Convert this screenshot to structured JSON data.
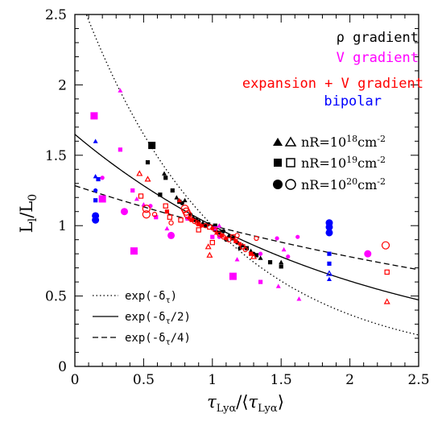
{
  "chart_data": {
    "type": "scatter",
    "xlabel": "τLyα/⟨τLyα⟩",
    "xlabel_parts": {
      "tau": "τ",
      "sub": "Lyα",
      "slash": "/",
      "open": "⟨",
      "close": "⟩"
    },
    "ylabel": "Ll/L0",
    "ylabel_parts": {
      "L": "L",
      "sub_l": "l",
      "slash": "/",
      "sub_0": "0"
    },
    "xlim": [
      0,
      2.5
    ],
    "ylim": [
      0,
      2.5
    ],
    "x_ticks": [
      {
        "value": 0,
        "label": "0"
      },
      {
        "value": 0.5,
        "label": "0.5"
      },
      {
        "value": 1,
        "label": "1"
      },
      {
        "value": 1.5,
        "label": "1.5"
      },
      {
        "value": 2,
        "label": "2"
      },
      {
        "value": 2.5,
        "label": "2.5"
      }
    ],
    "y_ticks": [
      {
        "value": 0,
        "label": "0"
      },
      {
        "value": 0.5,
        "label": "0.5"
      },
      {
        "value": 1,
        "label": "1"
      },
      {
        "value": 1.5,
        "label": "1.5"
      },
      {
        "value": 2,
        "label": "2"
      },
      {
        "value": 2.5,
        "label": "2.5"
      }
    ],
    "color_legend": [
      {
        "label": "ρ gradient",
        "color": "#000000"
      },
      {
        "label": "V gradient",
        "color": "#ff00ff"
      },
      {
        "label": "expansion + V gradient",
        "color": "#ff0000"
      },
      {
        "label": "bipolar",
        "color": "#0000ff"
      }
    ],
    "marker_legend": [
      {
        "shape": "triangle",
        "base": "nR=10",
        "exp": "18",
        "unit": "cm",
        "unit_exp": "-2"
      },
      {
        "shape": "square",
        "base": "nR=10",
        "exp": "19",
        "unit": "cm",
        "unit_exp": "-2"
      },
      {
        "shape": "circle",
        "base": "nR=10",
        "exp": "20",
        "unit": "cm",
        "unit_exp": "-2"
      }
    ],
    "curves": [
      {
        "label_base": "exp(-δ",
        "label_sub": "τ",
        "label_end": ")",
        "divisor": 1,
        "dash": "dotted"
      },
      {
        "label_base": "exp(-δ",
        "label_sub": "τ",
        "label_end": "/2)",
        "divisor": 2,
        "dash": "solid"
      },
      {
        "label_base": "exp(-δ",
        "label_sub": "τ",
        "label_end": "/4)",
        "divisor": 4,
        "dash": "dashed"
      }
    ],
    "series": [
      {
        "color": "#000000",
        "points": [
          [
            0.56,
            1.57,
            "square",
            true,
            "l"
          ],
          [
            0.53,
            1.45,
            "square",
            true,
            "s"
          ],
          [
            0.65,
            1.37,
            "triangle",
            true,
            "s"
          ],
          [
            0.66,
            1.34,
            "square",
            true,
            "s"
          ],
          [
            0.71,
            1.25,
            "square",
            true,
            "s"
          ],
          [
            0.74,
            1.2,
            "triangle",
            true,
            "s"
          ],
          [
            0.76,
            1.17,
            "square",
            true,
            "s"
          ],
          [
            0.78,
            1.16,
            "circle",
            true,
            "s"
          ],
          [
            0.8,
            1.18,
            "triangle",
            true,
            "s"
          ],
          [
            0.84,
            1.08,
            "circle",
            true,
            "s"
          ],
          [
            0.86,
            1.06,
            "triangle",
            true,
            "s"
          ],
          [
            0.88,
            1.04,
            "square",
            true,
            "s"
          ],
          [
            0.9,
            1.03,
            "circle",
            true,
            "s"
          ],
          [
            0.93,
            1.02,
            "triangle",
            true,
            "s"
          ],
          [
            0.95,
            1.0,
            "square",
            true,
            "s"
          ],
          [
            0.97,
            1.01,
            "circle",
            true,
            "s"
          ],
          [
            1.02,
            0.97,
            "triangle",
            true,
            "s"
          ],
          [
            1.05,
            0.95,
            "square",
            true,
            "s"
          ],
          [
            1.08,
            0.96,
            "circle",
            true,
            "s"
          ],
          [
            1.12,
            0.93,
            "triangle",
            true,
            "s"
          ],
          [
            1.15,
            0.91,
            "square",
            true,
            "s"
          ],
          [
            1.18,
            0.88,
            "circle",
            true,
            "s"
          ],
          [
            1.22,
            0.86,
            "triangle",
            true,
            "s"
          ],
          [
            1.25,
            0.84,
            "square",
            true,
            "s"
          ],
          [
            1.28,
            0.82,
            "triangle",
            true,
            "s"
          ],
          [
            1.32,
            0.79,
            "square",
            true,
            "s"
          ],
          [
            1.35,
            0.77,
            "triangle",
            true,
            "s"
          ],
          [
            1.42,
            0.74,
            "square",
            true,
            "s"
          ],
          [
            1.1,
            0.9,
            "circle",
            true,
            "s"
          ],
          [
            1.2,
            0.84,
            "circle",
            true,
            "s"
          ],
          [
            1.3,
            0.8,
            "circle",
            true,
            "s"
          ],
          [
            1.5,
            0.74,
            "triangle",
            true,
            "s"
          ],
          [
            1.5,
            0.71,
            "square",
            true,
            "s"
          ],
          [
            1.02,
            1.0,
            "square",
            true,
            "s"
          ],
          [
            0.62,
            1.22,
            "square",
            true,
            "s"
          ]
        ]
      },
      {
        "color": "#ff00ff",
        "points": [
          [
            0.14,
            1.78,
            "square",
            true,
            "l"
          ],
          [
            0.33,
            1.96,
            "triangle",
            true,
            "s"
          ],
          [
            0.33,
            1.54,
            "square",
            true,
            "s"
          ],
          [
            0.2,
            1.34,
            "circle",
            true,
            "s"
          ],
          [
            0.2,
            1.19,
            "square",
            true,
            "l"
          ],
          [
            0.36,
            1.1,
            "circle",
            true,
            "l"
          ],
          [
            0.42,
            1.25,
            "square",
            true,
            "s"
          ],
          [
            0.45,
            1.19,
            "triangle",
            true,
            "s"
          ],
          [
            0.5,
            1.15,
            "triangle",
            true,
            "s"
          ],
          [
            0.55,
            1.14,
            "circle",
            true,
            "s"
          ],
          [
            0.59,
            1.06,
            "square",
            true,
            "s"
          ],
          [
            0.67,
            0.98,
            "triangle",
            true,
            "s"
          ],
          [
            0.7,
            0.93,
            "circle",
            true,
            "l"
          ],
          [
            0.43,
            0.82,
            "square",
            true,
            "l"
          ],
          [
            0.82,
            1.05,
            "square",
            true,
            "s"
          ],
          [
            1.02,
            0.98,
            "square",
            true,
            "s"
          ],
          [
            1.05,
            0.92,
            "circle",
            true,
            "s"
          ],
          [
            1.0,
            0.92,
            "square",
            true,
            "s"
          ],
          [
            1.15,
            0.64,
            "square",
            true,
            "l"
          ],
          [
            1.18,
            0.76,
            "triangle",
            true,
            "s"
          ],
          [
            1.35,
            0.6,
            "square",
            true,
            "s"
          ],
          [
            1.48,
            0.57,
            "triangle",
            true,
            "s"
          ],
          [
            1.47,
            0.91,
            "circle",
            true,
            "s"
          ],
          [
            1.52,
            0.83,
            "triangle",
            true,
            "s"
          ],
          [
            1.55,
            0.78,
            "circle",
            true,
            "s"
          ],
          [
            1.62,
            0.92,
            "circle",
            true,
            "s"
          ],
          [
            1.63,
            0.48,
            "triangle",
            true,
            "s"
          ],
          [
            2.13,
            0.8,
            "circle",
            true,
            "l"
          ],
          [
            1.35,
            0.8,
            "circle",
            true,
            "s"
          ],
          [
            1.05,
            1.0,
            "triangle",
            true,
            "s"
          ]
        ]
      },
      {
        "color": "#ff0000",
        "points": [
          [
            0.47,
            1.37,
            "triangle",
            false,
            "s"
          ],
          [
            0.53,
            1.33,
            "triangle",
            false,
            "s"
          ],
          [
            0.48,
            1.21,
            "square",
            false,
            "s"
          ],
          [
            0.52,
            1.12,
            "circle",
            false,
            "l"
          ],
          [
            0.52,
            1.08,
            "circle",
            false,
            "l"
          ],
          [
            0.66,
            1.14,
            "square",
            false,
            "s"
          ],
          [
            0.67,
            1.1,
            "square",
            true,
            "s"
          ],
          [
            0.69,
            1.06,
            "square",
            false,
            "s"
          ],
          [
            0.7,
            1.02,
            "circle",
            false,
            "s"
          ],
          [
            0.76,
            1.18,
            "triangle",
            true,
            "s"
          ],
          [
            0.8,
            1.12,
            "circle",
            false,
            "l"
          ],
          [
            0.81,
            1.1,
            "circle",
            false,
            "l"
          ],
          [
            0.82,
            1.08,
            "circle",
            false,
            "l"
          ],
          [
            0.83,
            1.06,
            "triangle",
            true,
            "s"
          ],
          [
            0.84,
            1.05,
            "circle",
            false,
            "s"
          ],
          [
            0.85,
            1.04,
            "square",
            true,
            "s"
          ],
          [
            0.87,
            1.03,
            "circle",
            false,
            "s"
          ],
          [
            0.89,
            1.02,
            "circle",
            false,
            "s"
          ],
          [
            0.9,
            1.01,
            "square",
            true,
            "s"
          ],
          [
            0.92,
            1.0,
            "circle",
            true,
            "s"
          ],
          [
            0.95,
            1.0,
            "circle",
            false,
            "s"
          ],
          [
            0.98,
            0.99,
            "square",
            false,
            "s"
          ],
          [
            1.0,
            0.98,
            "circle",
            true,
            "s"
          ],
          [
            1.02,
            0.97,
            "circle",
            false,
            "s"
          ],
          [
            1.03,
            0.95,
            "triangle",
            true,
            "s"
          ],
          [
            1.05,
            0.94,
            "circle",
            false,
            "s"
          ],
          [
            1.07,
            0.93,
            "square",
            true,
            "s"
          ],
          [
            1.08,
            0.92,
            "circle",
            false,
            "s"
          ],
          [
            1.1,
            0.91,
            "circle",
            true,
            "s"
          ],
          [
            1.12,
            0.9,
            "circle",
            false,
            "s"
          ],
          [
            1.15,
            0.92,
            "square",
            false,
            "s"
          ],
          [
            1.17,
            0.89,
            "square",
            true,
            "s"
          ],
          [
            1.18,
            0.93,
            "circle",
            false,
            "s"
          ],
          [
            1.2,
            0.87,
            "circle",
            true,
            "s"
          ],
          [
            1.22,
            0.85,
            "square",
            false,
            "s"
          ],
          [
            1.24,
            0.83,
            "circle",
            false,
            "s"
          ],
          [
            1.28,
            0.8,
            "square",
            true,
            "s"
          ],
          [
            1.3,
            0.78,
            "triangle",
            false,
            "s"
          ],
          [
            1.32,
            0.91,
            "circle",
            false,
            "s"
          ],
          [
            0.98,
            0.79,
            "triangle",
            false,
            "s"
          ],
          [
            1.0,
            0.88,
            "square",
            false,
            "s"
          ],
          [
            0.97,
            0.85,
            "triangle",
            false,
            "s"
          ],
          [
            0.58,
            1.08,
            "circle",
            false,
            "s"
          ],
          [
            0.77,
            1.04,
            "square",
            false,
            "s"
          ],
          [
            0.9,
            0.97,
            "square",
            false,
            "s"
          ],
          [
            2.26,
            0.86,
            "circle",
            false,
            "l"
          ],
          [
            2.27,
            0.67,
            "square",
            false,
            "s"
          ],
          [
            2.27,
            0.46,
            "triangle",
            false,
            "s"
          ]
        ]
      },
      {
        "color": "#0000ff",
        "points": [
          [
            0.15,
            1.6,
            "triangle",
            true,
            "s"
          ],
          [
            0.15,
            1.35,
            "triangle",
            true,
            "s"
          ],
          [
            0.17,
            1.33,
            "square",
            true,
            "s"
          ],
          [
            0.15,
            1.25,
            "circle",
            true,
            "s"
          ],
          [
            0.15,
            1.18,
            "square",
            true,
            "s"
          ],
          [
            0.15,
            1.07,
            "circle",
            true,
            "l"
          ],
          [
            0.15,
            1.04,
            "circle",
            true,
            "l"
          ],
          [
            1.85,
            1.02,
            "circle",
            true,
            "l"
          ],
          [
            1.85,
            0.99,
            "circle",
            true,
            "l"
          ],
          [
            1.85,
            0.95,
            "circle",
            true,
            "l"
          ],
          [
            1.85,
            0.8,
            "square",
            true,
            "s"
          ],
          [
            1.85,
            0.73,
            "square",
            true,
            "s"
          ],
          [
            1.85,
            0.66,
            "triangle",
            false,
            "s"
          ],
          [
            1.85,
            0.62,
            "triangle",
            true,
            "s"
          ]
        ]
      }
    ]
  }
}
